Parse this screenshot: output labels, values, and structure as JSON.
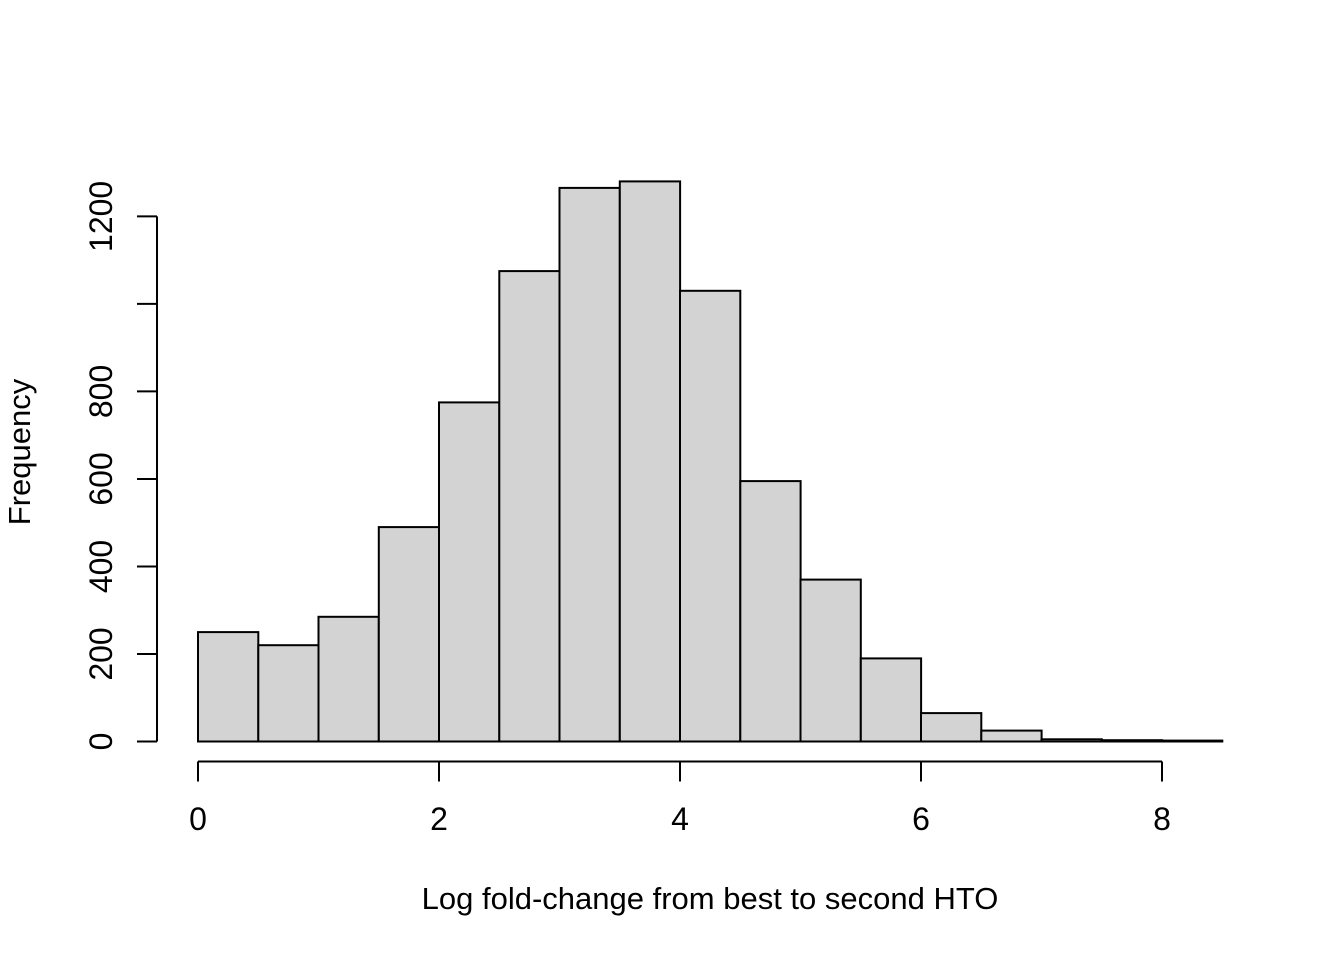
{
  "chart_data": {
    "type": "histogram",
    "title": "",
    "xlabel": "Log fold-change from best to second HTO",
    "ylabel": "Frequency",
    "bin_start": 0,
    "bin_width": 0.5,
    "bin_edges": [
      0,
      0.5,
      1,
      1.5,
      2,
      2.5,
      3,
      3.5,
      4,
      4.5,
      5,
      5.5,
      6,
      6.5,
      7,
      7.5,
      8,
      8.5
    ],
    "counts": [
      250,
      220,
      285,
      490,
      775,
      1075,
      1265,
      1280,
      1030,
      595,
      370,
      190,
      65,
      25,
      5,
      3,
      2
    ],
    "xlim": [
      0,
      8.5
    ],
    "ylim": [
      0,
      1280
    ],
    "x_ticks": [
      {
        "value": 0,
        "label": "0"
      },
      {
        "value": 2,
        "label": "2"
      },
      {
        "value": 4,
        "label": "4"
      },
      {
        "value": 6,
        "label": "6"
      },
      {
        "value": 8,
        "label": "8"
      }
    ],
    "y_ticks": [
      {
        "value": 0,
        "label": "0"
      },
      {
        "value": 200,
        "label": "200"
      },
      {
        "value": 400,
        "label": "400"
      },
      {
        "value": 600,
        "label": "600"
      },
      {
        "value": 800,
        "label": "800"
      },
      {
        "value": 1000,
        "label": ""
      },
      {
        "value": 1200,
        "label": "1200"
      }
    ],
    "grid": false,
    "legend": null,
    "colors": {
      "bar_fill": "#d3d3d3",
      "bar_stroke": "#000000",
      "axis": "#000000",
      "text": "#000000",
      "background": "#ffffff"
    }
  }
}
